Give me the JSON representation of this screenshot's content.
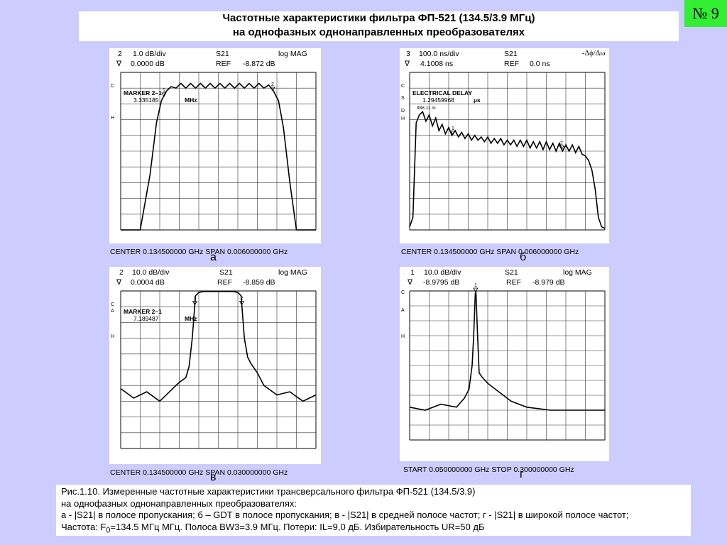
{
  "badge": "№ 9",
  "title": {
    "line1": "Частотные характеристики фильтра ФП-521 (134.5/3.9 МГц)",
    "line2": "на однофазных однонаправленных преобразователях"
  },
  "panels": [
    {
      "id": "a",
      "header": {
        "ch": "2",
        "scale": "1.0 dB/div",
        "param": "S21",
        "fmt": "log  MAG",
        "ref_sym": "∇",
        "ref_val": "0.0000 dB",
        "ref_label": "REF",
        "ref_level": "-8.872 dB"
      },
      "side_labels": [
        "C",
        "H"
      ],
      "marker_title": "MARKER  2–1",
      "marker_value": "3.335185",
      "marker_unit": "MHz",
      "footer": "CENTER   0.134500000 GHz   SPAN   0.006000000 GHz",
      "letter": "а"
    },
    {
      "id": "b",
      "header": {
        "ch": "3",
        "scale": "100.0 ns/div",
        "param": "S21",
        "fmt": "-Δϕ/Δω",
        "ref_sym": "∇",
        "ref_val": "4.1008 ns",
        "ref_label": "REF",
        "ref_level": "0.0 ns"
      },
      "side_labels": [
        "C",
        "S",
        "D",
        "H"
      ],
      "marker_title": "ELECTRICAL DELAY",
      "marker_value": "1.29459968",
      "marker_unit": "µs",
      "marker_extra": "988.11  m",
      "footer": "CENTER   0.134500000 GHz   SPAN   0.006000000 GHz",
      "letter": "б"
    },
    {
      "id": "c",
      "header": {
        "ch": "2",
        "scale": "10.0 dB/div",
        "param": "S21",
        "fmt": "log  MAG",
        "ref_sym": "∇",
        "ref_val": "0.0004 dB",
        "ref_label": "REF",
        "ref_level": "-8.859 dB"
      },
      "side_labels": [
        "C",
        "A",
        "H"
      ],
      "marker_title": "MARKER  2–1",
      "marker_value": "7.189487",
      "marker_unit": "MHz",
      "footer": "CENTER  0.134500000 GHz   SPAN   0.030000000 GHz",
      "letter": "в"
    },
    {
      "id": "d",
      "header": {
        "ch": "1",
        "scale": "10.0 dB/div",
        "param": "S21",
        "fmt": "log  MAG",
        "ref_sym": "∇",
        "ref_val": "-8.9795 dB",
        "ref_label": "REF",
        "ref_level": "-8.979 dB"
      },
      "side_labels": [
        "C",
        "A",
        "H"
      ],
      "marker_title": "",
      "marker_value": "",
      "marker_unit": "",
      "footer": "START   0.050000000 GHz     STOP  0.300000000 GHz",
      "letter": "г"
    }
  ],
  "caption": {
    "line1": "Рис.1.10. Измеренные частотные характеристики трансверсального фильтра ФП-521 (134.5/3.9)",
    "line2": "на однофазных однонаправленных преобразователях:",
    "line3": "а - |S21| в полосе пропускания; б – GDT в полосе пропускания; в - |S21| в средней полосе частот; г - |S21| в широкой полосе частот;",
    "line4_pre": "Частота: F",
    "line4_sub": "0",
    "line4_post": "=134.5 МГц МГц. Полоса BW3=3.9 МГц. Потери: IL=9,0 дБ. Избирательность UR=50 дБ"
  },
  "chart_data": [
    {
      "type": "line",
      "title": "",
      "xlabel": "",
      "ylabel": "",
      "x_unit": "MHz offset from center",
      "xlim": [
        -3,
        3
      ],
      "ylim": [
        -10,
        0
      ],
      "grid": true,
      "series": [
        {
          "x": [
            -3.0,
            -2.4,
            -2.1,
            -1.9,
            -1.75,
            -1.6,
            -1.45,
            -1.3,
            -1.15,
            -1.0,
            -0.85,
            -0.7,
            -0.55,
            -0.4,
            -0.25,
            -0.1,
            0.05,
            0.2,
            0.35,
            0.5,
            0.65,
            0.8,
            0.95,
            1.1,
            1.25,
            1.4,
            1.55,
            1.7,
            1.85,
            2.0,
            2.2,
            2.4,
            3.0
          ],
          "y": [
            -10.0,
            -10.0,
            -6.5,
            -3.2,
            -1.8,
            -1.2,
            -0.9,
            -1.0,
            -0.7,
            -1.0,
            -0.7,
            -1.0,
            -0.7,
            -1.0,
            -0.7,
            -1.0,
            -0.7,
            -1.0,
            -0.7,
            -1.0,
            -0.7,
            -1.0,
            -0.7,
            -1.0,
            -0.7,
            -1.0,
            -0.8,
            -1.2,
            -1.8,
            -3.5,
            -7.0,
            -10.0,
            -10.0
          ]
        }
      ],
      "markers": [
        {
          "label": "1",
          "x": -1.67
        },
        {
          "label": "2",
          "x": 1.67
        }
      ]
    },
    {
      "type": "line",
      "title": "",
      "xlabel": "",
      "ylabel": "",
      "x_unit": "MHz offset from center",
      "xlim": [
        -3,
        3
      ],
      "ylim": [
        -500,
        500
      ],
      "grid": true,
      "series": [
        {
          "x": [
            -3.0,
            -2.9,
            -2.8,
            -2.7,
            -2.6,
            -2.5,
            -2.4,
            -2.3,
            -2.2,
            -2.1,
            -2.0,
            -1.9,
            -1.8,
            -1.7,
            -1.6,
            -1.5,
            -1.4,
            -1.3,
            -1.2,
            -1.1,
            -1.0,
            -0.9,
            -0.8,
            -0.7,
            -0.6,
            -0.5,
            -0.4,
            -0.3,
            -0.2,
            -0.1,
            0.0,
            0.1,
            0.2,
            0.3,
            0.4,
            0.5,
            0.6,
            0.7,
            0.8,
            0.9,
            1.0,
            1.1,
            1.2,
            1.3,
            1.4,
            1.5,
            1.6,
            1.7,
            1.8,
            1.9,
            2.0,
            2.1,
            2.2,
            2.3,
            2.4,
            2.5,
            2.6,
            2.7,
            2.8,
            2.9,
            3.0
          ],
          "y": [
            -480,
            -420,
            180,
            230,
            250,
            190,
            230,
            160,
            210,
            130,
            170,
            110,
            150,
            100,
            130,
            90,
            120,
            80,
            110,
            70,
            100,
            70,
            90,
            60,
            90,
            50,
            80,
            50,
            80,
            40,
            70,
            40,
            70,
            30,
            70,
            30,
            70,
            20,
            60,
            20,
            60,
            10,
            60,
            10,
            50,
            0,
            50,
            0,
            40,
            0,
            40,
            -10,
            30,
            -20,
            -30,
            -60,
            -120,
            -240,
            -420,
            -480,
            -490
          ]
        }
      ],
      "markers": [
        {
          "label": "1",
          "x": -1.67
        },
        {
          "label": "2",
          "x": 1.67
        }
      ]
    },
    {
      "type": "line",
      "title": "",
      "xlabel": "",
      "ylabel": "",
      "x_unit": "MHz offset from center",
      "xlim": [
        -15,
        15
      ],
      "ylim": [
        -100,
        0
      ],
      "grid": true,
      "series": [
        {
          "x": [
            -15,
            -13,
            -11,
            -9,
            -7,
            -6,
            -5,
            -4.5,
            -4,
            -3.5,
            -3,
            -2.5,
            -2,
            -1.5,
            -1,
            -0.5,
            0,
            0.5,
            1,
            1.5,
            2,
            2.5,
            3,
            3.5,
            4,
            4.5,
            5,
            6,
            7,
            9,
            11,
            13,
            15
          ],
          "y": [
            -62,
            -68,
            -64,
            -70,
            -62,
            -58,
            -55,
            -48,
            -30,
            -3,
            -1,
            -0.5,
            -0.3,
            -0.3,
            -0.3,
            -0.3,
            -0.3,
            -0.3,
            -0.3,
            -0.3,
            -0.3,
            -0.5,
            -1,
            -3,
            -30,
            -42,
            -46,
            -52,
            -60,
            -66,
            -64,
            -70,
            -66
          ]
        }
      ],
      "markers": [
        {
          "label": "1",
          "x": -3.6
        },
        {
          "label": "2",
          "x": 3.6
        }
      ]
    },
    {
      "type": "line",
      "title": "",
      "xlabel": "",
      "ylabel": "",
      "x_unit": "GHz",
      "xlim": [
        0.05,
        0.3
      ],
      "ylim": [
        -100,
        0
      ],
      "grid": true,
      "series": [
        {
          "x": [
            0.05,
            0.07,
            0.09,
            0.11,
            0.12,
            0.126,
            0.13,
            0.132,
            0.134,
            0.1345,
            0.135,
            0.137,
            0.139,
            0.143,
            0.15,
            0.16,
            0.17,
            0.18,
            0.2,
            0.23,
            0.26,
            0.3
          ],
          "y": [
            -78,
            -80,
            -76,
            -78,
            -72,
            -66,
            -50,
            -30,
            -2,
            0,
            -2,
            -30,
            -55,
            -58,
            -62,
            -66,
            -70,
            -74,
            -78,
            -80,
            -80,
            -80
          ]
        }
      ],
      "markers": [
        {
          "label": "1",
          "x": 0.1345
        }
      ]
    }
  ]
}
